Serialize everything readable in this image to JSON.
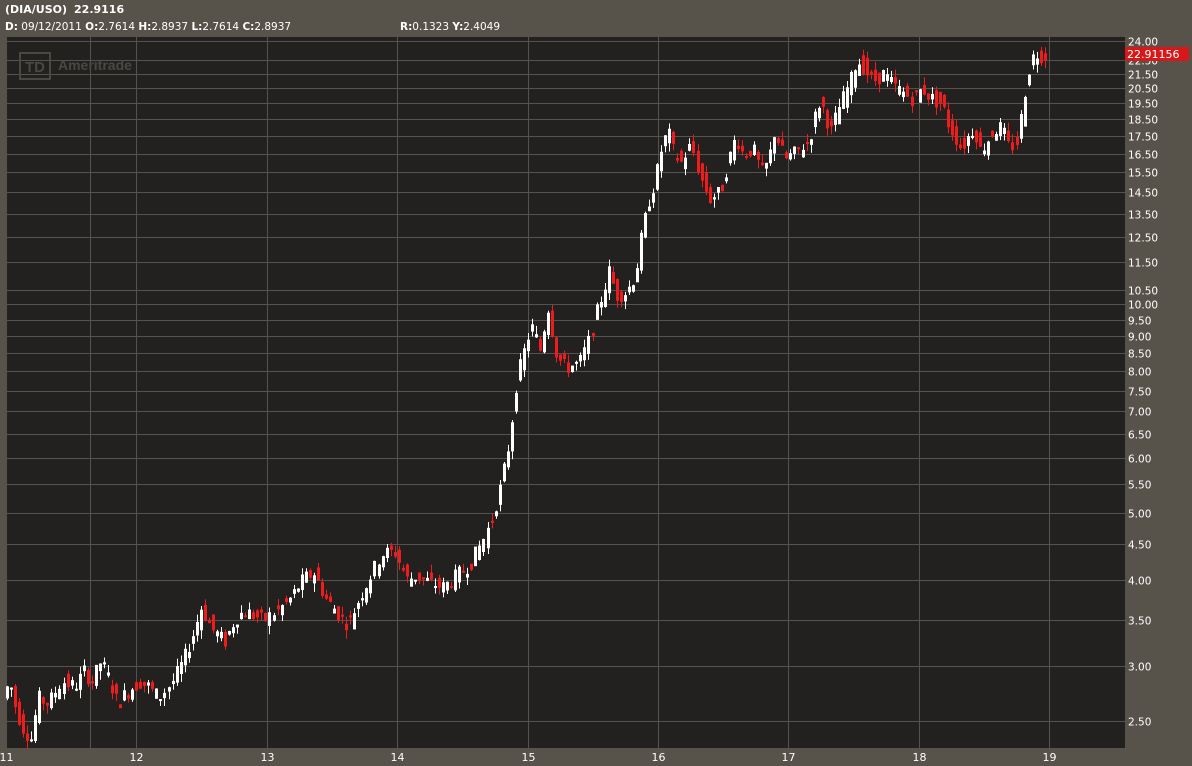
{
  "header": {
    "symbol": "(DIA/USO)",
    "last": "22.9116",
    "date_label": "D:",
    "date": "09/12/2011",
    "open_label": "O:",
    "open": "2.7614",
    "high_label": "H:",
    "high": "2.8937",
    "low_label": "L:",
    "low": "2.7614",
    "close_label": "C:",
    "close": "2.8937",
    "r_label": "R:",
    "r": "0.1323",
    "y_label": "Y:",
    "y": "2.4049"
  },
  "watermark": "Ameritrade",
  "price_tag": "22.91156",
  "colors": {
    "background": "#57534a",
    "plot": "#222120",
    "grid": "#55534d",
    "up": "#ffffff",
    "down": "#ee1c1c",
    "tag": "#d81818"
  },
  "chart_data": {
    "type": "candlestick",
    "yscale": "log",
    "ylim": [
      2.2,
      24.0
    ],
    "xlim": [
      11,
      19.6
    ],
    "x_ticks": [
      "11",
      "12",
      "13",
      "14",
      "15",
      "16",
      "17",
      "18",
      "19"
    ],
    "y_ticks": [
      "24.00",
      "22.50",
      "21.50",
      "20.50",
      "19.50",
      "18.50",
      "17.50",
      "16.50",
      "15.50",
      "14.50",
      "13.50",
      "12.50",
      "11.50",
      "10.50",
      "10.00",
      "9.50",
      "9.00",
      "8.50",
      "8.00",
      "7.50",
      "7.00",
      "6.50",
      "6.00",
      "5.50",
      "5.00",
      "4.50",
      "4.00",
      "3.50",
      "3.00",
      "2.50"
    ],
    "path": [
      [
        11.0,
        2.7
      ],
      [
        11.05,
        2.85
      ],
      [
        11.1,
        2.6
      ],
      [
        11.15,
        2.45
      ],
      [
        11.22,
        2.35
      ],
      [
        11.27,
        2.7
      ],
      [
        11.35,
        2.65
      ],
      [
        11.45,
        2.85
      ],
      [
        11.55,
        2.8
      ],
      [
        11.62,
        2.95
      ],
      [
        11.68,
        2.85
      ],
      [
        11.75,
        3.05
      ],
      [
        11.82,
        2.85
      ],
      [
        11.88,
        2.65
      ],
      [
        11.95,
        2.75
      ],
      [
        12.05,
        2.85
      ],
      [
        12.12,
        2.8
      ],
      [
        12.2,
        2.7
      ],
      [
        12.3,
        2.85
      ],
      [
        12.38,
        3.05
      ],
      [
        12.45,
        3.3
      ],
      [
        12.52,
        3.65
      ],
      [
        12.6,
        3.4
      ],
      [
        12.7,
        3.25
      ],
      [
        12.78,
        3.5
      ],
      [
        12.85,
        3.6
      ],
      [
        12.93,
        3.55
      ],
      [
        13.0,
        3.5
      ],
      [
        13.1,
        3.6
      ],
      [
        13.2,
        3.75
      ],
      [
        13.3,
        4.0
      ],
      [
        13.38,
        4.1
      ],
      [
        13.48,
        3.75
      ],
      [
        13.58,
        3.55
      ],
      [
        13.65,
        3.45
      ],
      [
        13.72,
        3.7
      ],
      [
        13.82,
        4.05
      ],
      [
        13.9,
        4.35
      ],
      [
        14.0,
        4.4
      ],
      [
        14.1,
        4.0
      ],
      [
        14.18,
        4.05
      ],
      [
        14.28,
        3.95
      ],
      [
        14.38,
        3.9
      ],
      [
        14.48,
        4.05
      ],
      [
        14.58,
        4.2
      ],
      [
        14.68,
        4.55
      ],
      [
        14.75,
        4.9
      ],
      [
        14.82,
        5.5
      ],
      [
        14.88,
        6.3
      ],
      [
        14.94,
        7.8
      ],
      [
        15.0,
        8.6
      ],
      [
        15.05,
        9.3
      ],
      [
        15.12,
        8.6
      ],
      [
        15.18,
        9.9
      ],
      [
        15.25,
        8.4
      ],
      [
        15.32,
        8.1
      ],
      [
        15.42,
        8.2
      ],
      [
        15.5,
        8.9
      ],
      [
        15.55,
        9.7
      ],
      [
        15.6,
        10.4
      ],
      [
        15.65,
        11.2
      ],
      [
        15.7,
        10.3
      ],
      [
        15.78,
        10.4
      ],
      [
        15.85,
        11.0
      ],
      [
        15.9,
        12.6
      ],
      [
        15.95,
        14.0
      ],
      [
        16.0,
        15.0
      ],
      [
        16.05,
        16.7
      ],
      [
        16.1,
        17.8
      ],
      [
        16.15,
        16.5
      ],
      [
        16.2,
        16.0
      ],
      [
        16.28,
        17.0
      ],
      [
        16.35,
        15.2
      ],
      [
        16.42,
        14.2
      ],
      [
        16.5,
        14.5
      ],
      [
        16.56,
        16.0
      ],
      [
        16.62,
        17.5
      ],
      [
        16.68,
        16.4
      ],
      [
        16.75,
        16.8
      ],
      [
        16.82,
        15.5
      ],
      [
        16.87,
        16.0
      ],
      [
        16.92,
        17.8
      ],
      [
        17.0,
        16.2
      ],
      [
        17.07,
        16.5
      ],
      [
        17.12,
        16.8
      ],
      [
        17.18,
        17.2
      ],
      [
        17.22,
        18.5
      ],
      [
        17.27,
        19.8
      ],
      [
        17.3,
        18.8
      ],
      [
        17.35,
        17.8
      ],
      [
        17.4,
        19.0
      ],
      [
        17.45,
        20.0
      ],
      [
        17.5,
        21.0
      ],
      [
        17.55,
        22.5
      ],
      [
        17.6,
        22.0
      ],
      [
        17.67,
        21.0
      ],
      [
        17.75,
        21.5
      ],
      [
        17.82,
        20.8
      ],
      [
        17.9,
        20.2
      ],
      [
        17.98,
        19.8
      ],
      [
        18.05,
        20.5
      ],
      [
        18.12,
        19.8
      ],
      [
        18.2,
        19.5
      ],
      [
        18.25,
        18.2
      ],
      [
        18.3,
        17.5
      ],
      [
        18.35,
        16.8
      ],
      [
        18.4,
        17.4
      ],
      [
        18.45,
        18.0
      ],
      [
        18.5,
        16.6
      ],
      [
        18.55,
        17.2
      ],
      [
        18.6,
        17.8
      ],
      [
        18.66,
        18.0
      ],
      [
        18.72,
        16.8
      ],
      [
        18.78,
        17.2
      ],
      [
        18.83,
        20.0
      ],
      [
        18.88,
        22.5
      ],
      [
        18.92,
        23.0
      ],
      [
        18.96,
        22.9
      ]
    ]
  }
}
